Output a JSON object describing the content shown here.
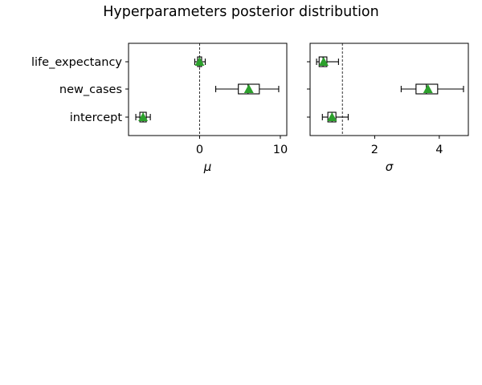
{
  "title": "Hyperparameters posterior distribution",
  "chart_data": [
    {
      "type": "boxplot",
      "name": "mu",
      "xlabel": "μ",
      "xlim": [
        -8.8,
        10.8
      ],
      "xticks": [
        0,
        10
      ],
      "xtick_labels": [
        "0",
        "10"
      ],
      "reference_line_x": 0,
      "categories": [
        "life_expectancy",
        "new_cases",
        "intercept"
      ],
      "boxes": [
        {
          "whisker_low": -0.6,
          "q1": -0.25,
          "median": 0.0,
          "q3": 0.25,
          "whisker_high": 0.7,
          "mean": 0.0
        },
        {
          "whisker_low": 2.0,
          "q1": 4.8,
          "median": 6.0,
          "q3": 7.4,
          "whisker_high": 9.8,
          "mean": 6.1
        },
        {
          "whisker_low": -7.9,
          "q1": -7.4,
          "median": -7.0,
          "q3": -6.6,
          "whisker_high": -6.1,
          "mean": -7.0
        }
      ]
    },
    {
      "type": "boxplot",
      "name": "sigma",
      "xlabel": "σ",
      "xlim": [
        0,
        4.9
      ],
      "xticks": [
        2,
        4
      ],
      "xtick_labels": [
        "2",
        "4"
      ],
      "reference_line_x": 1,
      "categories": [
        "life_expectancy",
        "new_cases",
        "intercept"
      ],
      "boxes": [
        {
          "whisker_low": 0.2,
          "q1": 0.28,
          "median": 0.4,
          "q3": 0.52,
          "whisker_high": 0.88,
          "mean": 0.42
        },
        {
          "whisker_low": 2.82,
          "q1": 3.28,
          "median": 3.6,
          "q3": 3.95,
          "whisker_high": 4.75,
          "mean": 3.65
        },
        {
          "whisker_low": 0.38,
          "q1": 0.55,
          "median": 0.68,
          "q3": 0.8,
          "whisker_high": 1.18,
          "mean": 0.68
        }
      ]
    }
  ],
  "colors": {
    "mean_marker": "#2ca02c",
    "box_edge": "#000000",
    "reference_line": "#000000"
  }
}
